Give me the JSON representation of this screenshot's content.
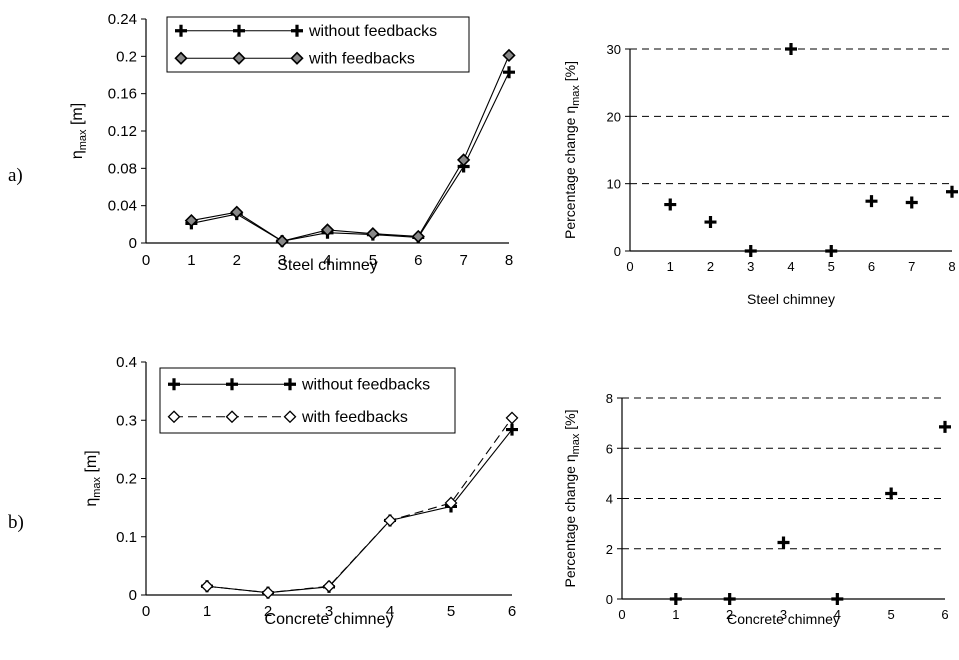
{
  "panel_labels": [
    "a)",
    "b)"
  ],
  "chart_data": [
    {
      "id": "a-left",
      "type": "line",
      "xlabel": "Steel chimney",
      "ylabel": "η_max [m]",
      "ylabel_main": "η",
      "ylabel_sub": "max",
      "ylabel_unit": " [m]",
      "xlim": [
        0,
        8
      ],
      "ylim": [
        0,
        0.24
      ],
      "xticks": [
        "0",
        "1",
        "2",
        "3",
        "4",
        "5",
        "6",
        "7",
        "8"
      ],
      "yticks": [
        "0",
        "0.04",
        "0.08",
        "0.12",
        "0.16",
        "0.2",
        "0.24"
      ],
      "x": [
        1,
        2,
        3,
        4,
        5,
        6,
        7,
        8
      ],
      "legend_position": "top-left",
      "series": [
        {
          "name": "without feedbacks",
          "marker": "plus",
          "dash": "solid",
          "values": [
            0.021,
            0.031,
            0.002,
            0.011,
            0.009,
            0.006,
            0.082,
            0.183
          ]
        },
        {
          "name": "with feedbacks",
          "marker": "diamond",
          "dash": "solid",
          "values": [
            0.024,
            0.033,
            0.002,
            0.014,
            0.01,
            0.007,
            0.089,
            0.201
          ]
        }
      ]
    },
    {
      "id": "a-right",
      "type": "scatter",
      "xlabel": "Steel chimney",
      "ylabel": "Percentage change η_max [%]",
      "ylabel_main": "Percentage change η",
      "ylabel_sub": "max",
      "ylabel_unit": " [%]",
      "xlim": [
        0,
        8
      ],
      "ylim": [
        0,
        30
      ],
      "xticks": [
        "0",
        "1",
        "2",
        "3",
        "4",
        "5",
        "6",
        "7",
        "8"
      ],
      "yticks": [
        "0",
        "10",
        "20",
        "30"
      ],
      "grid": "horizontal-dashed",
      "x": [
        1,
        2,
        3,
        4,
        5,
        6,
        7,
        8
      ],
      "values": [
        6.9,
        4.3,
        0,
        30,
        0,
        7.4,
        7.2,
        8.8
      ]
    },
    {
      "id": "b-left",
      "type": "line",
      "xlabel": "Concrete chimney",
      "ylabel": "η_max [m]",
      "ylabel_main": "η",
      "ylabel_sub": "max",
      "ylabel_unit": " [m]",
      "xlim": [
        0,
        6
      ],
      "ylim": [
        0,
        0.4
      ],
      "xticks": [
        "0",
        "1",
        "2",
        "3",
        "4",
        "5",
        "6"
      ],
      "yticks": [
        "0",
        "0.1",
        "0.2",
        "0.3",
        "0.4"
      ],
      "x": [
        1,
        2,
        3,
        4,
        5,
        6
      ],
      "legend_position": "top-left",
      "series": [
        {
          "name": "without feedbacks",
          "marker": "plus",
          "dash": "solid",
          "values": [
            0.015,
            0.004,
            0.014,
            0.128,
            0.152,
            0.284
          ]
        },
        {
          "name": "with feedbacks",
          "marker": "diamond-open",
          "dash": "dashed",
          "values": [
            0.015,
            0.004,
            0.015,
            0.128,
            0.158,
            0.304
          ]
        }
      ]
    },
    {
      "id": "b-right",
      "type": "scatter",
      "xlabel": "Concrete chimney",
      "ylabel": "Percentage change η_max [%]",
      "ylabel_main": "Percentage change η",
      "ylabel_sub": "max",
      "ylabel_unit": " [%]",
      "xlim": [
        0,
        6
      ],
      "ylim": [
        0,
        8
      ],
      "xticks": [
        "0",
        "1",
        "2",
        "3",
        "4",
        "5",
        "6"
      ],
      "yticks": [
        "0",
        "2",
        "4",
        "6",
        "8"
      ],
      "grid": "horizontal-dashed",
      "x": [
        1,
        2,
        3,
        4,
        5,
        6
      ],
      "values": [
        0,
        0,
        2.25,
        0,
        4.2,
        6.85
      ]
    }
  ]
}
